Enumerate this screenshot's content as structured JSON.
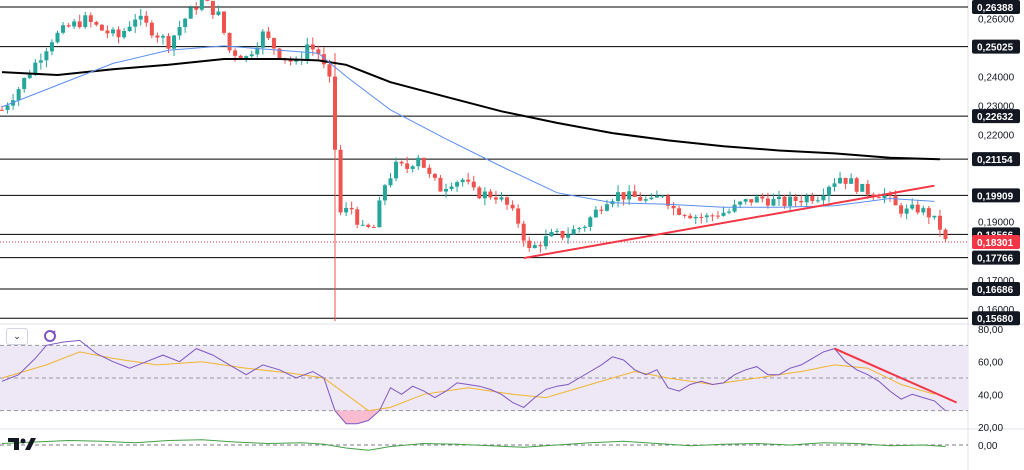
{
  "chart_data": [
    {
      "type": "candlestick",
      "title": "",
      "ylim": [
        0.1555,
        0.2663
      ],
      "grid": false,
      "colors": {
        "up": "#26a69a",
        "down": "#ef5350",
        "ma_long": "#000000",
        "ma_short": "#5b8ff0",
        "trendline": "#f23645",
        "level": "#000000",
        "current_price": "#f23645"
      },
      "y_ticks": [
        "0,26000",
        "0,24000",
        "0,23000",
        "0,22000",
        "0,19000",
        "0,17000",
        "0,16000"
      ],
      "levels": [
        "0,26388",
        "0,25025",
        "0,22632",
        "0,21154",
        "0,19909",
        "0,18566",
        "0,17766",
        "0,16686",
        "0,15680"
      ],
      "level_values": [
        0.26388,
        0.25025,
        0.22632,
        0.21154,
        0.19909,
        0.18566,
        0.17766,
        0.16686,
        0.1568
      ],
      "current_price": "0,18301",
      "current_price_value": 0.18301,
      "trendlines": [
        {
          "name": "rising-support",
          "from": [
            94,
            0.1775
          ],
          "to": [
            168,
            0.2024
          ]
        }
      ],
      "close_path": [
        [
          0,
          0.2285
        ],
        [
          3,
          0.236
        ],
        [
          6,
          0.2445
        ],
        [
          9,
          0.253
        ],
        [
          12,
          0.257
        ],
        [
          15,
          0.2595
        ],
        [
          18,
          0.256
        ],
        [
          21,
          0.2535
        ],
        [
          24,
          0.2605
        ],
        [
          27,
          0.256
        ],
        [
          30,
          0.2515
        ],
        [
          33,
          0.26
        ],
        [
          36,
          0.2665
        ],
        [
          39,
          0.261
        ],
        [
          41,
          0.249
        ],
        [
          44,
          0.2465
        ],
        [
          47,
          0.2545
        ],
        [
          50,
          0.248
        ],
        [
          53,
          0.244
        ],
        [
          55,
          0.251
        ],
        [
          57,
          0.248
        ],
        [
          59,
          0.238
        ],
        [
          60,
          0.215
        ],
        [
          61,
          0.193
        ],
        [
          63,
          0.1945
        ],
        [
          65,
          0.187
        ],
        [
          67,
          0.188
        ],
        [
          69,
          0.203
        ],
        [
          71,
          0.209
        ],
        [
          73,
          0.2085
        ],
        [
          75,
          0.213
        ],
        [
          77,
          0.2055
        ],
        [
          79,
          0.2015
        ],
        [
          81,
          0.204
        ],
        [
          83,
          0.2045
        ],
        [
          85,
          0.2
        ],
        [
          87,
          0.1995
        ],
        [
          89,
          0.199
        ],
        [
          91,
          0.1955
        ],
        [
          93,
          0.19
        ],
        [
          95,
          0.18
        ],
        [
          97,
          0.183
        ],
        [
          99,
          0.185
        ],
        [
          101,
          0.1855
        ],
        [
          103,
          0.187
        ],
        [
          105,
          0.189
        ],
        [
          107,
          0.1935
        ],
        [
          109,
          0.198
        ],
        [
          111,
          0.1995
        ],
        [
          113,
          0.1985
        ],
        [
          115,
          0.198
        ],
        [
          117,
          0.1965
        ],
        [
          119,
          0.2
        ],
        [
          121,
          0.1945
        ],
        [
          123,
          0.1935
        ],
        [
          125,
          0.192
        ],
        [
          127,
          0.1915
        ],
        [
          129,
          0.193
        ],
        [
          131,
          0.1935
        ],
        [
          133,
          0.196
        ],
        [
          135,
          0.1975
        ],
        [
          137,
          0.198
        ],
        [
          139,
          0.197
        ],
        [
          141,
          0.1965
        ],
        [
          143,
          0.1975
        ],
        [
          145,
          0.1985
        ],
        [
          147,
          0.199
        ],
        [
          149,
          0.203
        ],
        [
          151,
          0.2055
        ],
        [
          153,
          0.2035
        ],
        [
          155,
          0.201
        ],
        [
          157,
          0.2
        ],
        [
          159,
          0.1995
        ],
        [
          161,
          0.195
        ],
        [
          163,
          0.1935
        ],
        [
          165,
          0.1945
        ],
        [
          167,
          0.1925
        ],
        [
          169,
          0.188
        ],
        [
          170,
          0.183
        ]
      ],
      "ma_short": [
        [
          0,
          0.2295
        ],
        [
          10,
          0.237
        ],
        [
          20,
          0.2445
        ],
        [
          30,
          0.249
        ],
        [
          40,
          0.2505
        ],
        [
          50,
          0.249
        ],
        [
          57,
          0.248
        ],
        [
          62,
          0.24
        ],
        [
          70,
          0.2285
        ],
        [
          80,
          0.2185
        ],
        [
          90,
          0.209
        ],
        [
          100,
          0.2
        ],
        [
          110,
          0.1965
        ],
        [
          120,
          0.196
        ],
        [
          130,
          0.195
        ],
        [
          140,
          0.195
        ],
        [
          150,
          0.1955
        ],
        [
          160,
          0.198
        ],
        [
          168,
          0.197
        ]
      ],
      "ma_long": [
        [
          0,
          0.2415
        ],
        [
          10,
          0.2405
        ],
        [
          20,
          0.2425
        ],
        [
          30,
          0.244
        ],
        [
          40,
          0.246
        ],
        [
          50,
          0.246
        ],
        [
          57,
          0.2455
        ],
        [
          62,
          0.244
        ],
        [
          70,
          0.238
        ],
        [
          80,
          0.233
        ],
        [
          90,
          0.228
        ],
        [
          100,
          0.224
        ],
        [
          110,
          0.2205
        ],
        [
          120,
          0.218
        ],
        [
          130,
          0.216
        ],
        [
          140,
          0.2145
        ],
        [
          150,
          0.2135
        ],
        [
          160,
          0.212
        ],
        [
          169,
          0.2115
        ]
      ]
    },
    {
      "type": "line",
      "title": "",
      "ylim": [
        20,
        80
      ],
      "grid": false,
      "colors": {
        "rsi": "#7e57c2",
        "signal": "#f2b530",
        "band_fill": "#ede7f6",
        "trendline": "#f23645",
        "oversold_fill": "#f8bbd0"
      },
      "y_ticks": [
        "80,00",
        "60,00",
        "40,00",
        "20,00"
      ],
      "bands": [
        30,
        50,
        70
      ],
      "trendlines": [
        {
          "name": "rsi-downtrend",
          "from": [
            150,
            68
          ],
          "to": [
            172,
            35
          ]
        }
      ],
      "rsi": [
        [
          0,
          48
        ],
        [
          3,
          52
        ],
        [
          6,
          62
        ],
        [
          8,
          70
        ],
        [
          11,
          72
        ],
        [
          14,
          73
        ],
        [
          17,
          65
        ],
        [
          20,
          60
        ],
        [
          23,
          56
        ],
        [
          26,
          60
        ],
        [
          29,
          64
        ],
        [
          32,
          60
        ],
        [
          35,
          68
        ],
        [
          38,
          64
        ],
        [
          41,
          58
        ],
        [
          44,
          52
        ],
        [
          47,
          58
        ],
        [
          50,
          55
        ],
        [
          53,
          50
        ],
        [
          56,
          54
        ],
        [
          58,
          50
        ],
        [
          60,
          30
        ],
        [
          62,
          22
        ],
        [
          64,
          22
        ],
        [
          66,
          24
        ],
        [
          68,
          30
        ],
        [
          70,
          44
        ],
        [
          72,
          40
        ],
        [
          74,
          45
        ],
        [
          76,
          42
        ],
        [
          78,
          38
        ],
        [
          80,
          42
        ],
        [
          82,
          47
        ],
        [
          84,
          46
        ],
        [
          86,
          45
        ],
        [
          88,
          43
        ],
        [
          90,
          40
        ],
        [
          92,
          35
        ],
        [
          94,
          32
        ],
        [
          96,
          38
        ],
        [
          98,
          43
        ],
        [
          100,
          45
        ],
        [
          102,
          46
        ],
        [
          104,
          50
        ],
        [
          106,
          54
        ],
        [
          108,
          58
        ],
        [
          110,
          63
        ],
        [
          112,
          61
        ],
        [
          114,
          55
        ],
        [
          116,
          52
        ],
        [
          118,
          55
        ],
        [
          120,
          44
        ],
        [
          122,
          42
        ],
        [
          124,
          46
        ],
        [
          126,
          48
        ],
        [
          128,
          46
        ],
        [
          130,
          47
        ],
        [
          132,
          52
        ],
        [
          134,
          55
        ],
        [
          136,
          57
        ],
        [
          138,
          52
        ],
        [
          140,
          52
        ],
        [
          142,
          56
        ],
        [
          144,
          58
        ],
        [
          146,
          62
        ],
        [
          148,
          66
        ],
        [
          150,
          68
        ],
        [
          152,
          60
        ],
        [
          154,
          55
        ],
        [
          156,
          52
        ],
        [
          158,
          48
        ],
        [
          160,
          42
        ],
        [
          162,
          37
        ],
        [
          164,
          40
        ],
        [
          166,
          38
        ],
        [
          168,
          36
        ],
        [
          170,
          30
        ]
      ],
      "signal": [
        [
          0,
          50
        ],
        [
          8,
          58
        ],
        [
          14,
          66
        ],
        [
          20,
          62
        ],
        [
          28,
          58
        ],
        [
          36,
          60
        ],
        [
          44,
          56
        ],
        [
          52,
          53
        ],
        [
          58,
          50
        ],
        [
          62,
          40
        ],
        [
          66,
          30
        ],
        [
          70,
          32
        ],
        [
          76,
          40
        ],
        [
          84,
          44
        ],
        [
          92,
          40
        ],
        [
          98,
          38
        ],
        [
          106,
          46
        ],
        [
          114,
          54
        ],
        [
          120,
          50
        ],
        [
          128,
          46
        ],
        [
          136,
          50
        ],
        [
          144,
          54
        ],
        [
          150,
          58
        ],
        [
          156,
          56
        ],
        [
          162,
          46
        ],
        [
          168,
          40
        ]
      ]
    },
    {
      "type": "line",
      "title": "",
      "ylim": [
        -1,
        1
      ],
      "grid": false,
      "colors": {
        "line": "#43a047",
        "zero": "#787b86"
      },
      "y_ticks": [
        "0,00"
      ],
      "values": [
        [
          0,
          0.1
        ],
        [
          6,
          0.2
        ],
        [
          12,
          0.3
        ],
        [
          18,
          0.25
        ],
        [
          24,
          0.15
        ],
        [
          30,
          0.3
        ],
        [
          36,
          0.35
        ],
        [
          42,
          0.2
        ],
        [
          48,
          0.1
        ],
        [
          54,
          0.15
        ],
        [
          58,
          0.05
        ],
        [
          62,
          -0.2
        ],
        [
          66,
          -0.35
        ],
        [
          70,
          -0.1
        ],
        [
          76,
          0.1
        ],
        [
          82,
          0.05
        ],
        [
          88,
          -0.05
        ],
        [
          94,
          -0.15
        ],
        [
          100,
          0.0
        ],
        [
          106,
          0.15
        ],
        [
          112,
          0.25
        ],
        [
          118,
          0.1
        ],
        [
          124,
          -0.05
        ],
        [
          130,
          0.05
        ],
        [
          136,
          0.1
        ],
        [
          142,
          0.0
        ],
        [
          148,
          0.15
        ],
        [
          154,
          0.1
        ],
        [
          160,
          -0.05
        ],
        [
          166,
          0.0
        ],
        [
          170,
          -0.1
        ]
      ]
    }
  ]
}
